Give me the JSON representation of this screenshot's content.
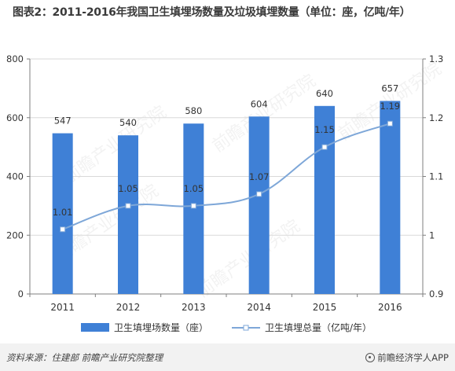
{
  "title": "图表2：2011-2016年我国卫生填埋场数量及垃圾填埋数量（单位：座，亿吨/年）",
  "watermark": "前瞻产业研究院",
  "footer": {
    "source": "资料来源：住建部 前瞻产业研究院整理",
    "brand": "前瞻经济学人APP"
  },
  "colors": {
    "bar": "#3f80d6",
    "line": "#7ea7d8",
    "axis": "#7f7f7f",
    "grid": "#d9d9d9"
  },
  "chart_data": {
    "type": "bar+line",
    "categories": [
      "2011",
      "2012",
      "2013",
      "2014",
      "2015",
      "2016"
    ],
    "series": [
      {
        "name": "卫生填埋场数量（座）",
        "type": "bar",
        "axis": "left",
        "values": [
          547,
          540,
          580,
          604,
          640,
          657
        ],
        "labels": [
          "547",
          "540",
          "580",
          "604",
          "640",
          "657"
        ]
      },
      {
        "name": "卫生填埋总量（亿吨/年）",
        "type": "line",
        "axis": "right",
        "values": [
          1.01,
          1.05,
          1.05,
          1.07,
          1.15,
          1.19
        ],
        "labels": [
          "1.01",
          "1.05",
          "1.05",
          "1.07",
          "1.15",
          "1.19"
        ]
      }
    ],
    "left_axis": {
      "ylim": [
        0,
        800
      ],
      "ticks": [
        "0",
        "200",
        "400",
        "600",
        "800"
      ]
    },
    "right_axis": {
      "ylim": [
        0.9,
        1.3
      ],
      "ticks": [
        "0.9",
        "1",
        "1.1",
        "1.2",
        "1.3"
      ]
    },
    "legend_position": "bottom",
    "grid": true
  }
}
